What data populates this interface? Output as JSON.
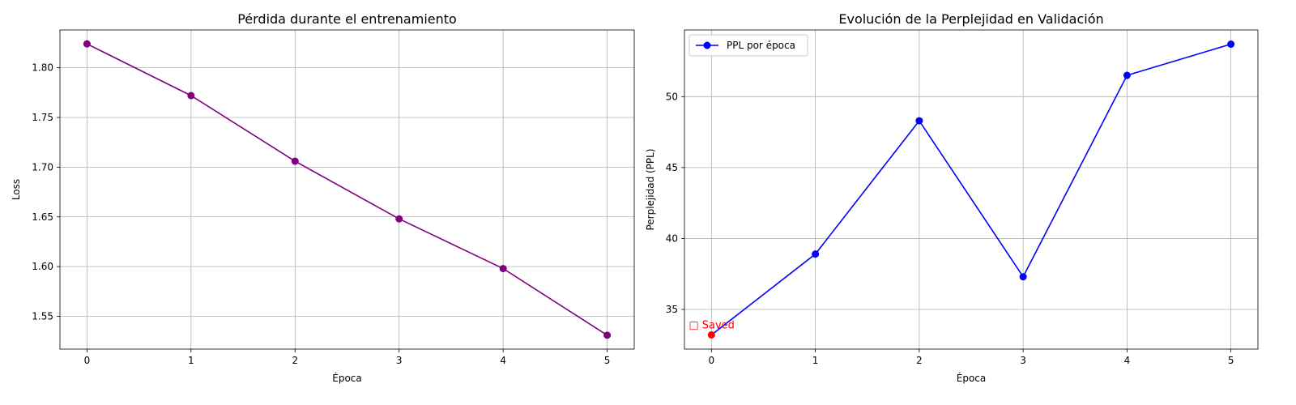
{
  "chart_data": [
    {
      "type": "line",
      "title": "Pérdida durante el entrenamiento",
      "xlabel": "Época",
      "ylabel": "Loss",
      "x": [
        0,
        1,
        2,
        3,
        4,
        5
      ],
      "xticks": [
        "0",
        "1",
        "2",
        "3",
        "4",
        "5"
      ],
      "yticks": [
        "1.55",
        "1.60",
        "1.65",
        "1.70",
        "1.75",
        "1.80"
      ],
      "xlim": [
        -0.26,
        5.26
      ],
      "ylim": [
        1.517,
        1.838
      ],
      "grid": true,
      "series": [
        {
          "color": "#800080",
          "marker": "circle",
          "values": [
            1.824,
            1.772,
            1.706,
            1.648,
            1.598,
            1.531
          ]
        }
      ]
    },
    {
      "type": "line",
      "title": "Evolución de la Perplejidad en Validación",
      "xlabel": "Época",
      "ylabel": "Perplejidad (PPL)",
      "x": [
        0,
        1,
        2,
        3,
        4,
        5
      ],
      "xticks": [
        "0",
        "1",
        "2",
        "3",
        "4",
        "5"
      ],
      "yticks": [
        "35",
        "40",
        "45",
        "50"
      ],
      "xlim": [
        -0.26,
        5.26
      ],
      "ylim": [
        32.2,
        54.7
      ],
      "grid": true,
      "legend_position": "upper-left",
      "series": [
        {
          "name": "PPL por época",
          "color": "#0000ff",
          "marker": "circle",
          "values": [
            33.2,
            38.9,
            48.3,
            37.3,
            51.5,
            53.7
          ]
        }
      ],
      "highlight": {
        "index": 0,
        "color": "#ff0000"
      },
      "annotation": {
        "text": "□ Saved",
        "x": 0,
        "y": 33.2,
        "color": "#ff0000"
      }
    }
  ]
}
